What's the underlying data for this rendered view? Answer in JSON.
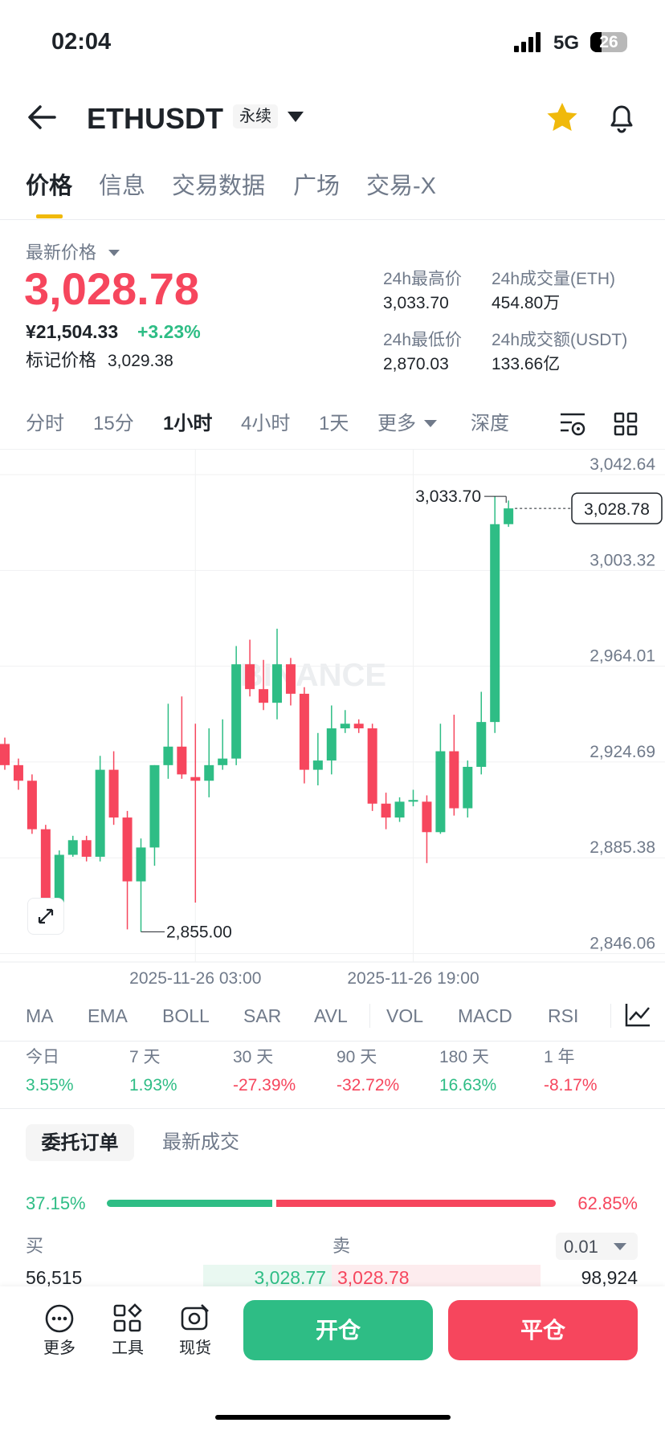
{
  "status_bar": {
    "time": "02:04",
    "network": "5G",
    "battery": "26"
  },
  "header": {
    "symbol": "ETHUSDT",
    "contract_tag": "永续"
  },
  "tabs": [
    "价格",
    "信息",
    "交易数据",
    "广场",
    "交易-X"
  ],
  "price_panel": {
    "last_price_label": "最新价格",
    "last_price": "3,028.78",
    "cny_price": "¥21,504.33",
    "change": "+3.23%",
    "mark_price_label": "标记价格",
    "mark_price": "3,029.38",
    "stats": [
      {
        "label": "24h最高价",
        "value": "3,033.70"
      },
      {
        "label": "24h成交量(ETH)",
        "value": "454.80万"
      },
      {
        "label": "24h最低价",
        "value": "2,870.03"
      },
      {
        "label": "24h成交额(USDT)",
        "value": "133.66亿"
      }
    ]
  },
  "intervals": [
    "分时",
    "15分",
    "1小时",
    "4小时",
    "1天",
    "更多",
    "深度"
  ],
  "chart_data": {
    "type": "candlestick",
    "categories": [
      null,
      null,
      null,
      null,
      null,
      null,
      null,
      null,
      null,
      null,
      null,
      null,
      null,
      null,
      "2025-11-26 03:00",
      null,
      null,
      null,
      null,
      null,
      null,
      null,
      null,
      null,
      null,
      null,
      null,
      null,
      null,
      null,
      "2025-11-26 19:00",
      null,
      null,
      null,
      null,
      null,
      null,
      null
    ],
    "open": [
      2932.1,
      2923.4,
      2917.0,
      2897.1,
      2867.0,
      2886.6,
      2892.6,
      2885.8,
      2921.5,
      2901.9,
      2875.7,
      2889.6,
      2923.4,
      2931.0,
      2918.5,
      2917.0,
      2923.4,
      2926.1,
      2964.8,
      2954.6,
      2949.0,
      2964.8,
      2952.7,
      2921.5,
      2925.3,
      2938.5,
      2940.4,
      2938.5,
      2907.6,
      2901.9,
      2908.4,
      2908.4,
      2895.9,
      2929.1,
      2905.7,
      2922.7,
      2941.1,
      3022.3
    ],
    "high": [
      2934.7,
      2926.1,
      2919.6,
      2898.9,
      2888.4,
      2894.4,
      2894.4,
      2927.2,
      2929.1,
      2904.6,
      2893.3,
      2923.4,
      2948.6,
      2951.6,
      2940.4,
      2938.5,
      2942.2,
      2972.3,
      2974.9,
      2966.6,
      2979.4,
      2967.4,
      2955.4,
      2936.6,
      2947.9,
      2946.0,
      2942.2,
      2940.4,
      2912.1,
      2910.2,
      2913.3,
      2911.0,
      2940.4,
      2944.1,
      2925.3,
      2953.5,
      3033.7,
      3032.0
    ],
    "low": [
      2921.5,
      2913.3,
      2895.2,
      2865.1,
      2865.1,
      2885.8,
      2883.9,
      2883.9,
      2898.9,
      2856.0,
      2855.0,
      2882.1,
      2917.8,
      2917.8,
      2867.0,
      2910.2,
      2921.5,
      2923.4,
      2951.6,
      2946.0,
      2942.2,
      2947.9,
      2915.9,
      2915.1,
      2919.6,
      2936.6,
      2936.6,
      2904.6,
      2897.1,
      2900.1,
      2906.5,
      2883.2,
      2895.2,
      2902.7,
      2901.9,
      2919.6,
      2936.6,
      3021.2
    ],
    "close": [
      2923.4,
      2917.0,
      2897.1,
      2868.1,
      2886.6,
      2892.6,
      2885.8,
      2921.5,
      2901.9,
      2875.7,
      2889.6,
      2923.4,
      2931.0,
      2919.6,
      2917.0,
      2923.4,
      2926.1,
      2964.8,
      2954.6,
      2949.0,
      2964.8,
      2952.7,
      2921.5,
      2925.3,
      2938.5,
      2940.4,
      2938.5,
      2907.6,
      2901.9,
      2908.4,
      2909.1,
      2895.9,
      2929.1,
      2905.7,
      2922.7,
      2941.1,
      3022.3,
      3028.78
    ],
    "up_color": "#2ebd85",
    "down_color": "#f6465d",
    "ylim": [
      2842.6,
      3053.2
    ],
    "yticks": [
      {
        "value": 2846.06,
        "label": "2,846.06"
      },
      {
        "value": 2885.38,
        "label": "2,885.38"
      },
      {
        "value": 2924.69,
        "label": "2,924.69"
      },
      {
        "value": 2964.01,
        "label": "2,964.01"
      },
      {
        "value": 3003.32,
        "label": "3,003.32"
      },
      {
        "value": 3042.64,
        "label": "3,042.64"
      }
    ],
    "grid": true,
    "high_label": "3,033.70",
    "low_label": "2,855.00",
    "last_label": "3,028.78",
    "watermark": "BINANCE"
  },
  "indicators": [
    "MA",
    "EMA",
    "BOLL",
    "SAR",
    "AVL",
    "VOL",
    "MACD",
    "RSI"
  ],
  "performance": [
    {
      "period": "今日",
      "change": "3.55%"
    },
    {
      "period": "7 天",
      "change": "1.93%"
    },
    {
      "period": "30 天",
      "change": "-27.39%"
    },
    {
      "period": "90 天",
      "change": "-32.72%"
    },
    {
      "period": "180 天",
      "change": "16.63%"
    },
    {
      "period": "1 年",
      "change": "-8.17%"
    }
  ],
  "order_tabs": [
    "委托订单",
    "最新成交"
  ],
  "order_book": {
    "buy_ratio": "37.15%",
    "sell_ratio": "62.85%",
    "buy_label": "买",
    "sell_label": "卖",
    "precision": "0.01",
    "row": {
      "bid_qty": "56,515",
      "bid_price": "3,028.77",
      "ask_price": "3,028.78",
      "ask_qty": "98,924"
    }
  },
  "bottom_bar": {
    "tools": [
      "更多",
      "工具",
      "现货"
    ],
    "open": "开仓",
    "close": "平仓"
  }
}
